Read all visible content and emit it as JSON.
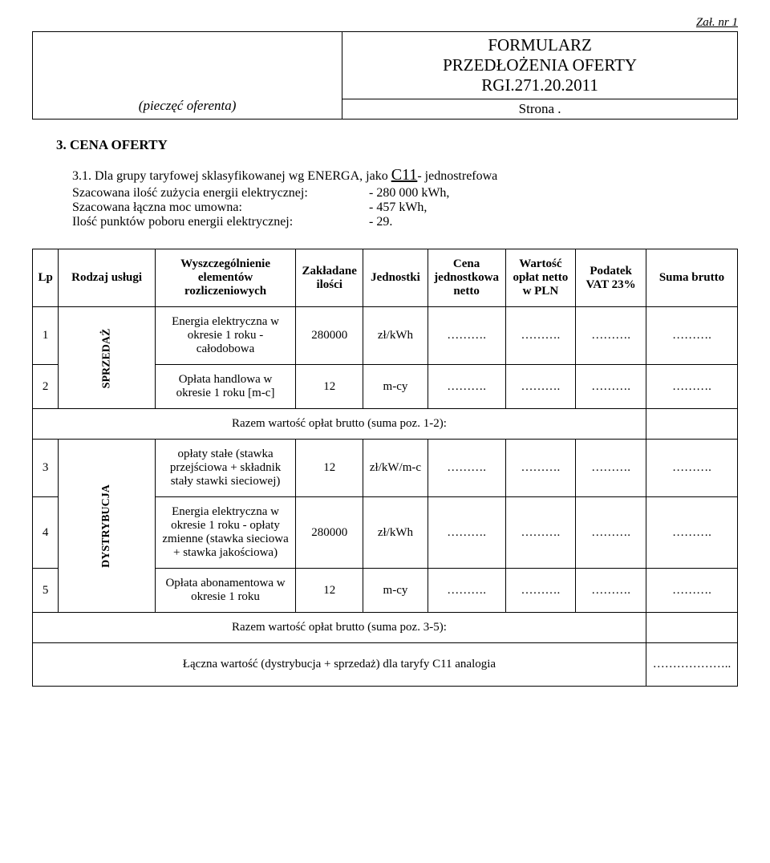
{
  "topnote": "Zał. nr 1",
  "header": {
    "stamp": "(pieczęć oferenta)",
    "title_line1": "FORMULARZ",
    "title_line2": "PRZEDŁOŻENIA OFERTY",
    "ref": "RGI.271.20.2011",
    "page": "Strona ."
  },
  "section": {
    "heading": "3.   CENA OFERTY",
    "para_lead": "3.1. Dla grupy taryfowej sklasyfikowanej wg ENERGA, jako ",
    "tariff": "C11",
    "para_tail": "- jednostrefowa",
    "rows": [
      {
        "label": "Szacowana ilość zużycia energii elektrycznej:",
        "value": "- 280 000 kWh,"
      },
      {
        "label": "Szacowana łączna moc umowna:",
        "value": "- 457 kWh,"
      },
      {
        "label": "Ilość punktów poboru energii elektrycznej:",
        "value": "- 29."
      }
    ]
  },
  "table": {
    "headers": {
      "lp": "Lp",
      "rodzaj": "Rodzaj usługi",
      "wysz": "Wyszczególnienie elementów rozliczeniowych",
      "zakl": "Zakładane ilości",
      "jedn": "Jednostki",
      "cena": "Cena jednostkowa netto",
      "wart": "Wartość opłat netto w PLN",
      "vat": "Podatek VAT 23%",
      "suma": "Suma brutto"
    },
    "groups": {
      "sprzedaz": "SPRZEDAŻ",
      "dystrybucja": "DYSTRYBUCJA"
    },
    "rows": [
      {
        "lp": "1",
        "desc": "Energia elektryczna w okresie 1 roku - całodobowa",
        "qty": "280000",
        "unit": "zł/kWh"
      },
      {
        "lp": "2",
        "desc": "Opłata handlowa w okresie 1 roku [m-c]",
        "qty": "12",
        "unit": "m-cy"
      },
      {
        "lp": "3",
        "desc": "opłaty stałe (stawka przejściowa + składnik stały stawki sieciowej)",
        "qty": "12",
        "unit": "zł/kW/m-c"
      },
      {
        "lp": "4",
        "desc": "Energia elektryczna w okresie 1 roku - opłaty zmienne (stawka sieciowa + stawka jakościowa)",
        "qty": "280000",
        "unit": "zł/kWh"
      },
      {
        "lp": "5",
        "desc": "Opłata abonamentowa w okresie 1 roku",
        "qty": "12",
        "unit": "m-cy"
      }
    ],
    "subtotal1": "Razem wartość opłat brutto (suma poz. 1-2):",
    "subtotal2": "Razem wartość opłat brutto (suma poz. 3-5):",
    "final": "Łączna wartość (dystrybucja + sprzedaż) dla taryfy C11 analogia",
    "dots": "……….",
    "final_dots": "……………….."
  },
  "style": {
    "background": "#ffffff",
    "text_color": "#000000",
    "border_color": "#000000",
    "font": "Times New Roman"
  }
}
